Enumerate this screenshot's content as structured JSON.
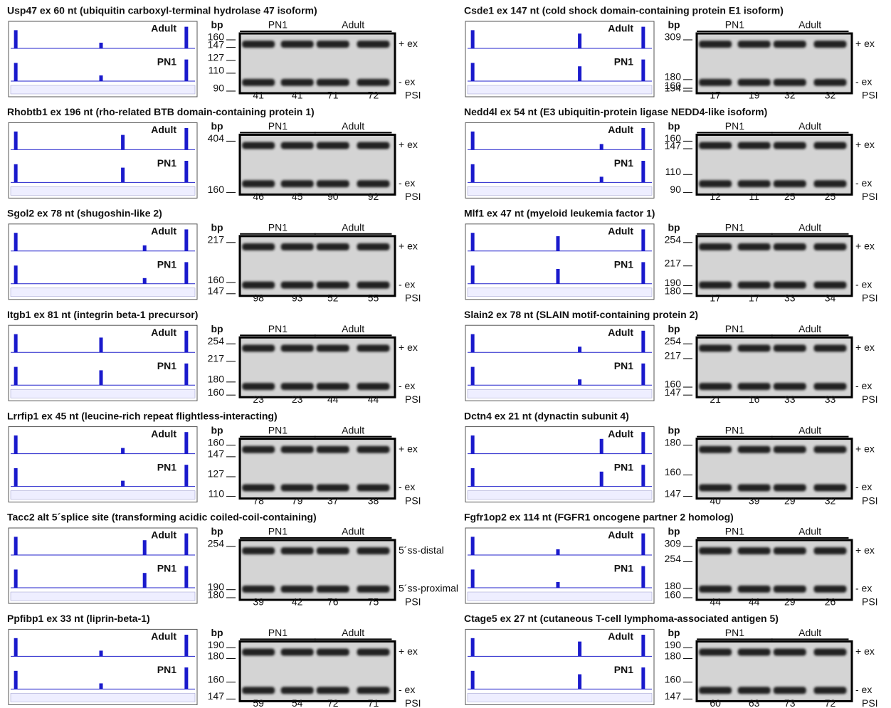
{
  "panels": [
    {
      "title": "Usp47 ex 60 nt (ubiquitin carboxyl-terminal hydrolase 47 isoform)",
      "tracks": [
        "Adult",
        "PN1"
      ],
      "bp_label": "bp",
      "groups": [
        "PN1",
        "Adult"
      ],
      "markers": [
        160,
        147,
        127,
        110,
        90
      ],
      "bands": [
        "+ ex",
        "- ex"
      ],
      "psi": [
        41,
        41,
        71,
        72
      ],
      "psi_label": "PSI"
    },
    {
      "title": "Rhobtb1 ex 196 nt (rho-related BTB domain-containing protein 1)",
      "tracks": [
        "Adult",
        "PN1"
      ],
      "bp_label": "bp",
      "groups": [
        "PN1",
        "Adult"
      ],
      "markers": [
        404,
        160
      ],
      "bands": [
        "+ ex",
        "- ex"
      ],
      "psi": [
        46,
        45,
        90,
        92
      ],
      "psi_label": "PSI"
    },
    {
      "title": "Sgol2 ex 78 nt (shugoshin-like 2)",
      "tracks": [
        "Adult",
        "PN1"
      ],
      "bp_label": "bp",
      "groups": [
        "PN1",
        "Adult"
      ],
      "markers": [
        217,
        160,
        147
      ],
      "bands": [
        "+ ex",
        "- ex"
      ],
      "psi": [
        98,
        93,
        52,
        55
      ],
      "psi_label": "PSI"
    },
    {
      "title": "Itgb1 ex 81 nt (integrin beta-1 precursor)",
      "tracks": [
        "Adult",
        "PN1"
      ],
      "bp_label": "bp",
      "groups": [
        "PN1",
        "Adult"
      ],
      "markers": [
        254,
        217,
        180,
        160
      ],
      "bands": [
        "+ ex",
        "- ex"
      ],
      "psi": [
        23,
        23,
        44,
        44
      ],
      "psi_label": "PSI"
    },
    {
      "title": "Lrrfip1 ex 45 nt (leucine-rich repeat flightless-interacting)",
      "tracks": [
        "Adult",
        "PN1"
      ],
      "bp_label": "bp",
      "groups": [
        "PN1",
        "Adult"
      ],
      "markers": [
        160,
        147,
        127,
        110
      ],
      "bands": [
        "+ ex",
        "- ex"
      ],
      "psi": [
        78,
        79,
        37,
        38
      ],
      "psi_label": "PSI"
    },
    {
      "title": "Tacc2 alt 5´splice site (transforming acidic coiled-coil-containing)",
      "tracks": [
        "Adult",
        "PN1"
      ],
      "bp_label": "bp",
      "groups": [
        "PN1",
        "Adult"
      ],
      "markers": [
        254,
        190,
        180
      ],
      "bands": [
        "5´ss-distal",
        "5´ss-proximal"
      ],
      "psi": [
        39,
        42,
        76,
        75
      ],
      "psi_label": "PSI"
    },
    {
      "title": "Ppfibp1 ex 33 nt (liprin-beta-1)",
      "tracks": [
        "Adult",
        "PN1"
      ],
      "bp_label": "bp",
      "groups": [
        "PN1",
        "Adult"
      ],
      "markers": [
        190,
        180,
        160,
        147
      ],
      "bands": [
        "+ ex",
        "- ex"
      ],
      "psi": [
        59,
        54,
        72,
        71
      ],
      "psi_label": "PSI"
    },
    {
      "title": "Csde1 ex 147 nt (cold shock domain-containing protein E1 isoform)",
      "tracks": [
        "Adult",
        "PN1"
      ],
      "bp_label": "bp",
      "groups": [
        "PN1",
        "Adult"
      ],
      "markers": [
        309,
        154,
        180,
        160
      ],
      "bands": [
        "+ ex",
        "- ex"
      ],
      "psi": [
        17,
        19,
        32,
        32
      ],
      "psi_label": "PSI"
    },
    {
      "title": "Nedd4l ex 54 nt (E3 ubiquitin-protein ligase NEDD4-like isoform)",
      "tracks": [
        "Adult",
        "PN1"
      ],
      "bp_label": "bp",
      "groups": [
        "PN1",
        "Adult"
      ],
      "markers": [
        160,
        147,
        110,
        90
      ],
      "bands": [
        "+ ex",
        "- ex"
      ],
      "psi": [
        12,
        11,
        25,
        25
      ],
      "psi_label": "PSI"
    },
    {
      "title": "Mlf1 ex 47 nt (myeloid leukemia factor 1)",
      "tracks": [
        "Adult",
        "PN1"
      ],
      "bp_label": "bp",
      "groups": [
        "PN1",
        "Adult"
      ],
      "markers": [
        254,
        217,
        190,
        180
      ],
      "bands": [
        "+ ex",
        "- ex"
      ],
      "psi": [
        17,
        17,
        33,
        34
      ],
      "psi_label": "PSI"
    },
    {
      "title": "Slain2 ex 78 nt (SLAIN motif-containing protein 2)",
      "tracks": [
        "Adult",
        "PN1"
      ],
      "bp_label": "bp",
      "groups": [
        "PN1",
        "Adult"
      ],
      "markers": [
        254,
        217,
        160,
        147
      ],
      "bands": [
        "+ ex",
        "- ex"
      ],
      "psi": [
        21,
        16,
        33,
        33
      ],
      "psi_label": "PSI"
    },
    {
      "title": "Dctn4 ex 21 nt (dynactin subunit 4)",
      "tracks": [
        "Adult",
        "PN1"
      ],
      "bp_label": "bp",
      "groups": [
        "PN1",
        "Adult"
      ],
      "markers": [
        180,
        160,
        147
      ],
      "bands": [
        "+ ex",
        "- ex"
      ],
      "psi": [
        40,
        39,
        29,
        32
      ],
      "psi_label": "PSI"
    },
    {
      "title": "Fgfr1op2 ex 114 nt (FGFR1 oncogene partner 2 homolog)",
      "tracks": [
        "Adult",
        "PN1"
      ],
      "bp_label": "bp",
      "groups": [
        "PN1",
        "Adult"
      ],
      "markers": [
        309,
        254,
        180,
        160
      ],
      "bands": [
        "+ ex",
        "- ex"
      ],
      "psi": [
        44,
        44,
        29,
        26
      ],
      "psi_label": "PSI"
    },
    {
      "title": "Ctage5 ex 27 nt (cutaneous T-cell lymphoma-associated antigen 5)",
      "tracks": [
        "Adult",
        "PN1"
      ],
      "bp_label": "bp",
      "groups": [
        "PN1",
        "Adult"
      ],
      "markers": [
        190,
        180,
        160,
        147
      ],
      "bands": [
        "+ ex",
        "- ex"
      ],
      "psi": [
        60,
        63,
        73,
        72
      ],
      "psi_label": "PSI"
    }
  ]
}
